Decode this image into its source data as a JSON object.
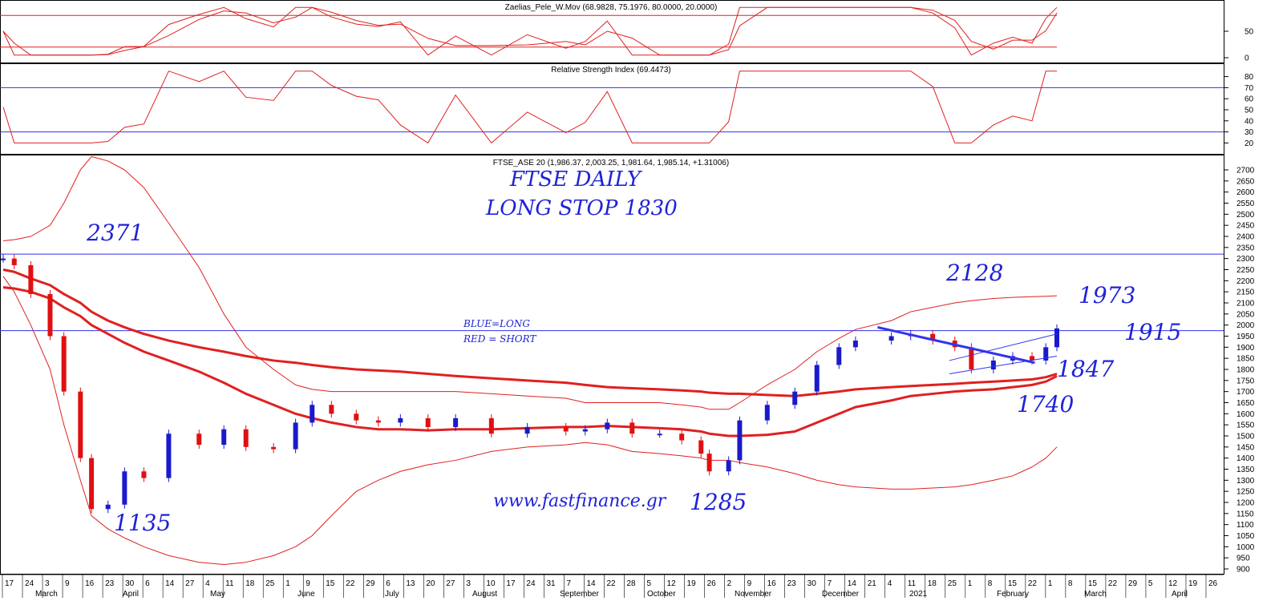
{
  "panels": {
    "zaelias": {
      "title": "Zaelias_Pele_W.Mov (68.9828, 75.1976, 80.0000, 20.0000)",
      "ticks": [
        50,
        0
      ],
      "levels": [
        80,
        20
      ]
    },
    "rsi": {
      "title": "Relative Strength Index (69.4473)",
      "ticks": [
        80,
        70,
        60,
        50,
        40,
        30,
        20
      ],
      "levels": [
        70,
        30
      ]
    },
    "price": {
      "title": "FTSE_ASE 20 (1,986.37, 2,003.25, 1,981.64, 1,985.14, +1.31006)",
      "ticks": [
        2700,
        2650,
        2600,
        2550,
        2500,
        2450,
        2400,
        2350,
        2300,
        2250,
        2200,
        2150,
        2100,
        2050,
        2000,
        1950,
        1900,
        1850,
        1800,
        1750,
        1700,
        1650,
        1600,
        1550,
        1500,
        1450,
        1400,
        1350,
        1300,
        1250,
        1200,
        1150,
        1100,
        1050,
        1000,
        950,
        900
      ],
      "hlines": [
        2320,
        1975
      ]
    }
  },
  "annotations": {
    "heading": "FTSE DAILY",
    "long_stop": "LONG STOP 1830",
    "legend_blue": "BLUE=LONG",
    "legend_red": "RED = SHORT",
    "website": "www.fastfinance.gr",
    "level_2371": "2371",
    "level_2128": "2128",
    "level_1973": "1973",
    "level_1915": "1915",
    "level_1847": "1847",
    "level_1740": "1740",
    "level_1135": "1135",
    "level_1285": "1285"
  },
  "xaxis": {
    "day_ticks": [
      "17",
      "24",
      "3",
      "9",
      "16",
      "23",
      "30",
      "6",
      "14",
      "27",
      "4",
      "11",
      "18",
      "25",
      "1",
      "9",
      "15",
      "22",
      "29",
      "6",
      "13",
      "20",
      "27",
      "3",
      "10",
      "17",
      "24",
      "31",
      "7",
      "14",
      "22",
      "28",
      "5",
      "12",
      "19",
      "26",
      "2",
      "9",
      "16",
      "23",
      "30",
      "7",
      "14",
      "21",
      "4",
      "11",
      "18",
      "25",
      "1",
      "8",
      "15",
      "22",
      "1",
      "8",
      "15",
      "22",
      "29",
      "5",
      "12",
      "19",
      "26"
    ],
    "months": [
      "March",
      "April",
      "May",
      "June",
      "July",
      "August",
      "September",
      "October",
      "November",
      "December",
      "2021",
      "February",
      "March",
      "April"
    ]
  },
  "colors": {
    "candle_up": "#1a1acc",
    "candle_down": "#e01010",
    "indicator": "#e02020",
    "level_line": "#3333ee",
    "annotation": "#1f22d8",
    "axis": "#000000"
  },
  "chart_data": {
    "type": "candlestick",
    "instrument": "FTSE_ASE 20",
    "last_ohlc": {
      "open": 1986.37,
      "high": 2003.25,
      "low": 1981.64,
      "close": 1985.14,
      "change": 1.31006
    },
    "x": [
      "2020-02-17",
      "2020-02-21",
      "2020-02-27",
      "2020-03-05",
      "2020-03-10",
      "2020-03-16",
      "2020-03-20",
      "2020-03-26",
      "2020-04-01",
      "2020-04-08",
      "2020-04-17",
      "2020-04-28",
      "2020-05-07",
      "2020-05-15",
      "2020-05-25",
      "2020-06-02",
      "2020-06-08",
      "2020-06-15",
      "2020-06-24",
      "2020-07-02",
      "2020-07-10",
      "2020-07-20",
      "2020-07-30",
      "2020-08-12",
      "2020-08-25",
      "2020-09-08",
      "2020-09-15",
      "2020-09-23",
      "2020-10-02",
      "2020-10-12",
      "2020-10-20",
      "2020-10-27",
      "2020-10-30",
      "2020-11-06",
      "2020-11-10",
      "2020-11-20",
      "2020-11-30",
      "2020-12-08",
      "2020-12-16",
      "2020-12-22",
      "2021-01-04",
      "2021-01-11",
      "2021-01-19",
      "2021-01-27",
      "2021-02-02",
      "2021-02-10",
      "2021-02-17",
      "2021-02-24",
      "2021-03-01",
      "2021-03-05"
    ],
    "close": [
      2300,
      2270,
      2140,
      1950,
      1700,
      1400,
      1170,
      1190,
      1340,
      1310,
      1510,
      1460,
      1530,
      1450,
      1440,
      1560,
      1640,
      1600,
      1570,
      1560,
      1580,
      1540,
      1580,
      1510,
      1540,
      1520,
      1530,
      1560,
      1510,
      1510,
      1480,
      1420,
      1340,
      1390,
      1570,
      1640,
      1700,
      1820,
      1900,
      1930,
      1950,
      1960,
      1930,
      1900,
      1800,
      1840,
      1860,
      1840,
      1900,
      1985
    ],
    "overlays": {
      "bollinger_upper": [
        2380,
        2385,
        2400,
        2450,
        2550,
        2700,
        2760,
        2740,
        2700,
        2620,
        2460,
        2260,
        2050,
        1900,
        1800,
        1730,
        1710,
        1700,
        1700,
        1700,
        1700,
        1700,
        1700,
        1690,
        1680,
        1670,
        1650,
        1650,
        1650,
        1650,
        1640,
        1630,
        1620,
        1620,
        1650,
        1730,
        1800,
        1880,
        1940,
        1980,
        2020,
        2060,
        2080,
        2100,
        2110,
        2120,
        2125,
        2128,
        2130,
        2132
      ],
      "bollinger_lower": [
        2220,
        2150,
        2000,
        1800,
        1550,
        1300,
        1140,
        1080,
        1040,
        1000,
        960,
        930,
        920,
        930,
        960,
        1000,
        1050,
        1140,
        1250,
        1300,
        1340,
        1370,
        1390,
        1430,
        1450,
        1460,
        1470,
        1460,
        1430,
        1420,
        1410,
        1400,
        1390,
        1390,
        1380,
        1360,
        1330,
        1300,
        1280,
        1270,
        1260,
        1260,
        1265,
        1270,
        1280,
        1300,
        1320,
        1360,
        1400,
        1450
      ],
      "moving_average_long": [
        2250,
        2240,
        2210,
        2180,
        2140,
        2100,
        2060,
        2020,
        1990,
        1960,
        1930,
        1900,
        1880,
        1860,
        1840,
        1830,
        1820,
        1810,
        1800,
        1795,
        1790,
        1780,
        1770,
        1760,
        1750,
        1740,
        1730,
        1720,
        1715,
        1710,
        1705,
        1700,
        1695,
        1690,
        1690,
        1685,
        1680,
        1690,
        1700,
        1710,
        1720,
        1725,
        1730,
        1735,
        1740,
        1745,
        1750,
        1755,
        1765,
        1780
      ],
      "moving_average_short": [
        2170,
        2165,
        2150,
        2120,
        2080,
        2040,
        2000,
        1960,
        1920,
        1880,
        1840,
        1790,
        1740,
        1690,
        1640,
        1600,
        1580,
        1560,
        1540,
        1530,
        1530,
        1525,
        1530,
        1530,
        1535,
        1540,
        1540,
        1545,
        1540,
        1535,
        1530,
        1520,
        1510,
        1500,
        1500,
        1505,
        1520,
        1560,
        1600,
        1630,
        1660,
        1680,
        1690,
        1700,
        1705,
        1710,
        1720,
        1730,
        1745,
        1770
      ]
    },
    "key_levels": [
      2371,
      2128,
      1973,
      1915,
      1847,
      1830,
      1740,
      1285,
      1135
    ],
    "trendlines": {
      "resistance": [
        [
          "2020-12-30",
          1990
        ],
        [
          "2021-02-25",
          1830
        ]
      ],
      "channel_upper": [
        [
          "2021-01-25",
          1840
        ],
        [
          "2021-03-05",
          1960
        ]
      ],
      "channel_lower": [
        [
          "2021-01-25",
          1780
        ],
        [
          "2021-03-05",
          1860
        ]
      ]
    },
    "indicators": {
      "zaelias": {
        "values": [
          68.9828,
          75.1976
        ],
        "levels": [
          80,
          20
        ]
      },
      "rsi": {
        "value": 69.4473,
        "levels": [
          70,
          30
        ]
      }
    },
    "ylim": [
      900,
      2700
    ],
    "grid": false
  }
}
